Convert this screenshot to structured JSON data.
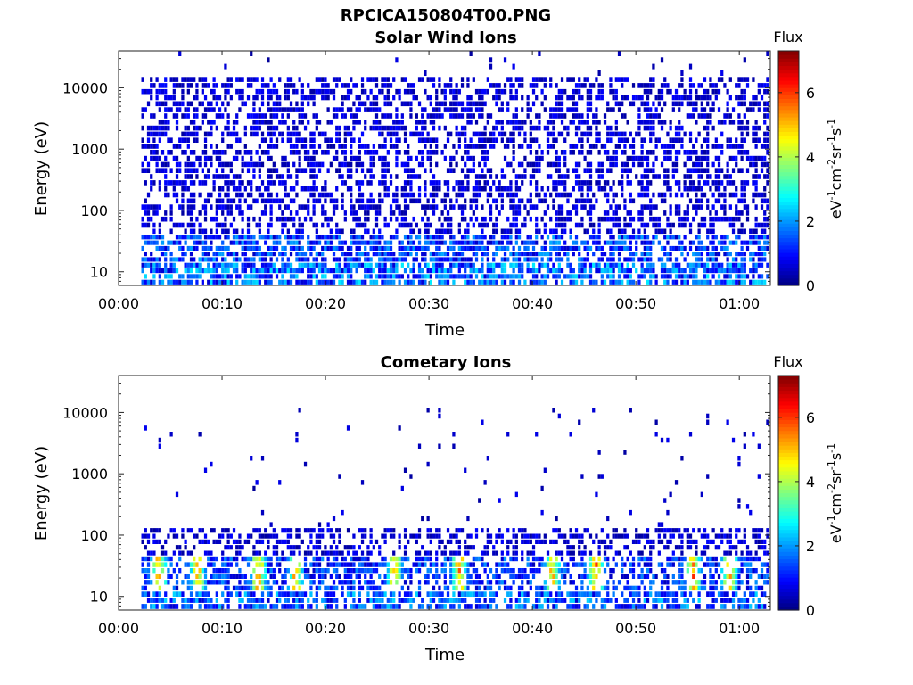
{
  "figure_title": "RPCICA150804T00.PNG",
  "chart_data": [
    {
      "type": "heatmap",
      "title": "Solar Wind Ions",
      "xlabel": "Time",
      "ylabel": "Energy (eV)",
      "x_ticks": [
        "00:00",
        "00:10",
        "00:20",
        "00:30",
        "00:40",
        "00:50",
        "01:00"
      ],
      "x_range_minutes": [
        0,
        63
      ],
      "data_start_minute": 2.2,
      "y_scale": "log",
      "y_range": [
        6,
        40000
      ],
      "y_ticks": [
        10,
        100,
        1000,
        10000
      ],
      "y_tick_labels": [
        "10",
        "100",
        "1000",
        "10000"
      ],
      "colorbar": {
        "title": "Flux",
        "label": "eV-1cm-2sr-1s-1",
        "range": [
          0,
          7.3
        ],
        "ticks": [
          0,
          2,
          4,
          6
        ],
        "colormap": "jet"
      },
      "bands": [
        {
          "energy_range": [
            6,
            14
          ],
          "mean_flux": 1.6,
          "coverage": 0.75
        },
        {
          "energy_range": [
            14,
            40
          ],
          "mean_flux": 1.3,
          "coverage": 0.7
        },
        {
          "energy_range": [
            40,
            15000
          ],
          "mean_flux": 0.6,
          "coverage": 0.5
        },
        {
          "energy_range": [
            15000,
            40000
          ],
          "mean_flux": 0.5,
          "coverage": 0.03
        }
      ]
    },
    {
      "type": "heatmap",
      "title": "Cometary Ions",
      "xlabel": "Time",
      "ylabel": "Energy (eV)",
      "x_ticks": [
        "00:00",
        "00:10",
        "00:20",
        "00:30",
        "00:40",
        "00:50",
        "01:00"
      ],
      "x_range_minutes": [
        0,
        63
      ],
      "data_start_minute": 2.2,
      "y_scale": "log",
      "y_range": [
        6,
        40000
      ],
      "y_ticks": [
        10,
        100,
        1000,
        10000
      ],
      "y_tick_labels": [
        "10",
        "100",
        "1000",
        "10000"
      ],
      "colorbar": {
        "title": "Flux",
        "label": "eV-1cm-2sr-1s-1",
        "range": [
          0,
          7.3
        ],
        "ticks": [
          0,
          2,
          4,
          6
        ],
        "colormap": "jet"
      },
      "bands": [
        {
          "energy_range": [
            6,
            12
          ],
          "mean_flux": 1.5,
          "coverage": 0.7
        },
        {
          "energy_range": [
            12,
            45
          ],
          "mean_flux": 1.2,
          "coverage": 0.6
        },
        {
          "energy_range": [
            45,
            130
          ],
          "mean_flux": 0.6,
          "coverage": 0.45
        },
        {
          "energy_range": [
            130,
            12000
          ],
          "mean_flux": 0.5,
          "coverage": 0.02
        }
      ],
      "peak_bursts_minutes": [
        3.8,
        7.5,
        13.4,
        17.0,
        26.5,
        32.8,
        41.8,
        46.0,
        55.4,
        58.9
      ],
      "peak_burst_energy_range": [
        12,
        45
      ],
      "peak_burst_flux": 5.8
    }
  ]
}
